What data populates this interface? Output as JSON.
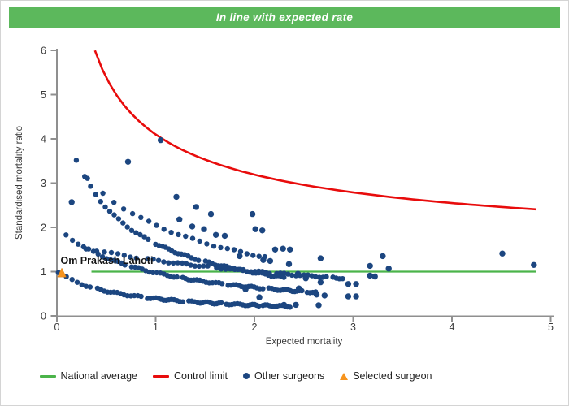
{
  "banner": {
    "text": "In line with expected rate",
    "bg_color": "#5cb85c",
    "text_color": "#ffffff"
  },
  "chart_data": {
    "type": "scatter",
    "title": "In line with expected rate",
    "xlabel": "Expected mortality",
    "ylabel": "Standardised mortality ratio",
    "xlim": [
      0,
      5
    ],
    "ylim": [
      0,
      6
    ],
    "x_ticks": [
      0,
      1,
      2,
      3,
      4,
      5
    ],
    "y_ticks": [
      0,
      1,
      2,
      3,
      4,
      5,
      6
    ],
    "grid": false,
    "legend_position": "bottom",
    "series": {
      "national_average": {
        "label": "National average",
        "color": "#4bb44a",
        "y": 1,
        "x_range": [
          0.35,
          4.85
        ]
      },
      "control_limit": {
        "label": "Control limit",
        "color": "#e80c0c",
        "curve_model": "y = offset + coef / sqrt(x)",
        "offset": 1,
        "coef": 3.1,
        "x_range": [
          0.385,
          4.85
        ],
        "y_at_x1": 4.1,
        "y_at_x5": 2.4
      },
      "other_surgeons": {
        "label": "Other surgeons",
        "color": "#1c4680",
        "band_model": "y = c / (x + x0)",
        "bands": [
          {
            "c": 0.64,
            "x0": 0.64,
            "x_start": 0.015,
            "x_end": 2.35,
            "n": 80
          },
          {
            "c": 1.89,
            "x0": 0.94,
            "x_start": 0.015,
            "x_end": 2.62,
            "n": 80
          },
          {
            "c": 5.0,
            "x0": 2.98,
            "x_start": 0.3,
            "x_end": 2.9,
            "n": 58
          },
          {
            "c": 2.45,
            "x0": 0.5,
            "x_start": 0.19,
            "x_end": 2.3,
            "n": 60
          },
          {
            "c": 4.2,
            "x0": 1.05,
            "x_start": 0.3,
            "x_end": 2.1,
            "n": 24
          }
        ],
        "points": [
          [
            1.05,
            3.97
          ],
          [
            0.72,
            3.48
          ],
          [
            1.21,
            2.69
          ],
          [
            1.41,
            2.46
          ],
          [
            1.56,
            2.3
          ],
          [
            1.98,
            2.3
          ],
          [
            2.01,
            1.96
          ],
          [
            2.08,
            1.93
          ],
          [
            1.61,
            1.83
          ],
          [
            1.7,
            1.81
          ],
          [
            2.21,
            1.5
          ],
          [
            2.29,
            1.52
          ],
          [
            2.36,
            1.5
          ],
          [
            1.85,
            1.35
          ],
          [
            2.09,
            1.26
          ],
          [
            2.16,
            1.24
          ],
          [
            2.35,
            1.17
          ],
          [
            2.67,
            1.3
          ],
          [
            2.67,
            0.76
          ],
          [
            2.63,
            0.48
          ],
          [
            2.71,
            0.46
          ],
          [
            2.65,
            0.24
          ],
          [
            2.95,
            0.72
          ],
          [
            3.03,
            0.72
          ],
          [
            2.95,
            0.44
          ],
          [
            3.03,
            0.44
          ],
          [
            3.17,
            1.13
          ],
          [
            3.17,
            0.91
          ],
          [
            3.22,
            0.89
          ],
          [
            3.3,
            1.35
          ],
          [
            3.36,
            1.07
          ],
          [
            4.51,
            1.41
          ],
          [
            4.83,
            1.15
          ],
          [
            0.15,
            2.57
          ],
          [
            1.24,
            2.18
          ],
          [
            1.37,
            2.02
          ],
          [
            1.49,
            1.96
          ],
          [
            2.45,
            0.62
          ],
          [
            2.3,
            0.25
          ],
          [
            2.42,
            0.25
          ],
          [
            1.91,
            0.6
          ],
          [
            2.05,
            0.42
          ],
          [
            2.52,
            0.85
          ],
          [
            2.44,
            0.95
          ]
        ]
      },
      "selected_surgeon": {
        "label": "Selected surgeon",
        "color": "#f7941d",
        "x": 0.05,
        "y": 0.97,
        "annotation": "Om Prakash Lahoti"
      }
    },
    "axis_color": "#8f8f8f",
    "tick_text_color": "#3b3b3b"
  },
  "legend": {
    "items": [
      {
        "label": "National average",
        "marker": "line",
        "color": "#4bb44a"
      },
      {
        "label": "Control limit",
        "marker": "line",
        "color": "#e80c0c"
      },
      {
        "label": "Other surgeons",
        "marker": "dot",
        "color": "#1c4680"
      },
      {
        "label": "Selected surgeon",
        "marker": "triangle",
        "color": "#f7941d"
      }
    ]
  }
}
